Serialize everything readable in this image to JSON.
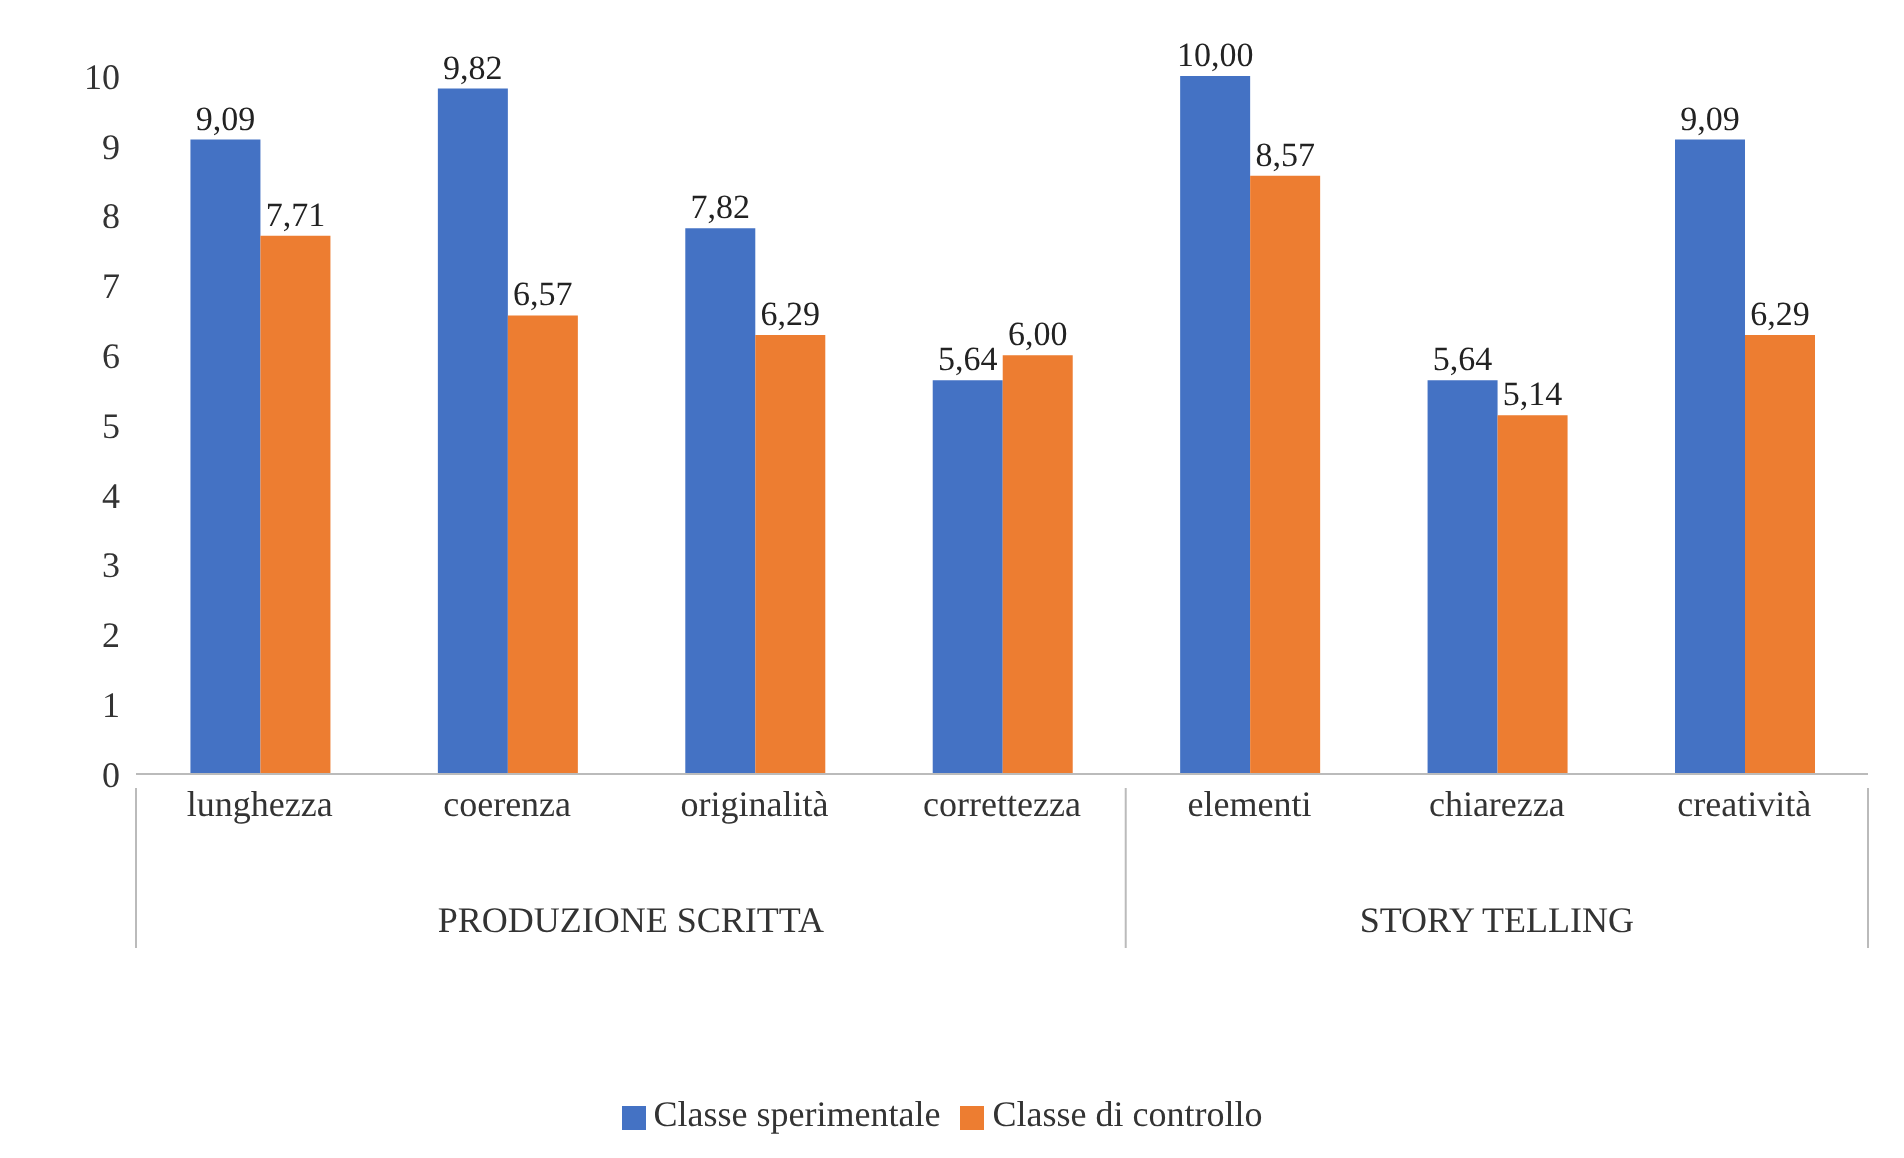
{
  "chart_data": {
    "type": "bar",
    "categories": [
      "lunghezza",
      "coerenza",
      "originalità",
      "correttezza",
      "elementi",
      "chiarezza",
      "creatività"
    ],
    "series": [
      {
        "name": "Classe sperimentale",
        "color": "#4472c4",
        "values": [
          9.09,
          9.82,
          7.82,
          5.64,
          10.0,
          5.64,
          9.09
        ],
        "value_labels": [
          "9,09",
          "9,82",
          "7,82",
          "5,64",
          "10,00",
          "5,64",
          "9,09"
        ]
      },
      {
        "name": "Classe di controllo",
        "color": "#ed7d31",
        "values": [
          7.71,
          6.57,
          6.29,
          6.0,
          8.57,
          5.14,
          6.29
        ],
        "value_labels": [
          "7,71",
          "6,57",
          "6,29",
          "6,00",
          "8,57",
          "5,14",
          "6,29"
        ]
      }
    ],
    "annotations": [
      "PRODUZIONE SCRITTA",
      "STORY TELLING"
    ],
    "ylim": [
      0,
      10
    ],
    "yticks": [
      0,
      1,
      2,
      3,
      4,
      5,
      6,
      7,
      8,
      9,
      10
    ],
    "grid": false,
    "legend": "bottom"
  }
}
